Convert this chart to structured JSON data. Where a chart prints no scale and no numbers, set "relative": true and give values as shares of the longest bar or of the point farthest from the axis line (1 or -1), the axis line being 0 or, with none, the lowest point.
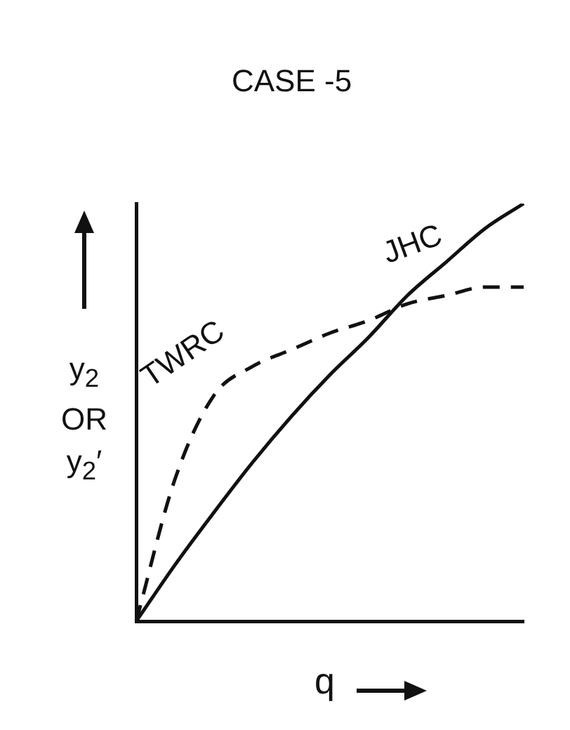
{
  "chart_data": {
    "type": "line",
    "title": "CASE -5",
    "xlabel": "q",
    "ylabel": "y$_{2}$ OR y$_{2}$′",
    "relative": true,
    "grid": false,
    "legend": false,
    "marker": "none",
    "categories": [
      null,
      null,
      null,
      null,
      null,
      null,
      null,
      null,
      null,
      null,
      null
    ],
    "series": [
      {
        "name": "JHC",
        "color": "#111111",
        "line_style": "solid",
        "values": [
          0,
          0.135,
          0.26,
          0.38,
          0.49,
          0.59,
          0.68,
          0.78,
          0.86,
          0.94,
          1
        ]
      },
      {
        "name": "TWRC",
        "color": "#111111",
        "line_style": "dashed",
        "values": [
          0,
          0.34,
          0.54,
          0.61,
          0.65,
          0.69,
          0.72,
          0.76,
          0.78,
          0.8,
          0.8
        ]
      }
    ]
  }
}
